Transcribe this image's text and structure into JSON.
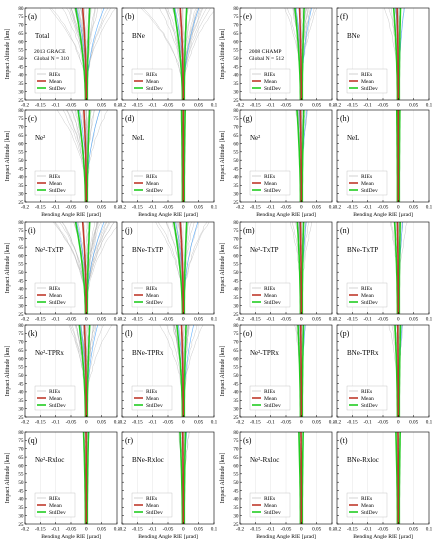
{
  "figure": {
    "axis": {
      "xlim": [
        -0.2,
        0.1
      ],
      "ylim": [
        25,
        80
      ],
      "xticks": [
        -0.2,
        -0.15,
        -0.1,
        -0.05,
        0,
        0.05,
        0.1
      ],
      "yticks": [
        25,
        30,
        35,
        40,
        45,
        50,
        55,
        60,
        65,
        70,
        75,
        80
      ],
      "xlabel": "Bending Angle RIE [µrad]",
      "ylabel": "Impact Altitude [km]"
    },
    "legend": {
      "entries": [
        "RIEs",
        "Mean",
        "StdDev"
      ],
      "placement": "lower-right"
    },
    "colors": {
      "ries": "#b5b5b5",
      "mean": "#c0392b",
      "stddev": "#22cc22",
      "highlight": "#1e90ff"
    }
  },
  "chart_data": [
    {
      "type": "line",
      "label": "(a)",
      "title": "Total",
      "note_lines": [
        "2013 GRACE",
        "Global N = 310"
      ],
      "ries_spread": 0.16,
      "density": 28,
      "mean_offset": -0.012,
      "stddev_offset": 0.02,
      "show_ylabel": true,
      "show_xlabel": false
    },
    {
      "type": "line",
      "label": "(b)",
      "title": "BNe",
      "note_lines": [],
      "ries_spread": 0.14,
      "density": 28,
      "mean_offset": -0.01,
      "stddev_offset": 0.018,
      "show_ylabel": false,
      "show_xlabel": false
    },
    {
      "type": "line",
      "label": "(e)",
      "title": "",
      "note_lines": [
        "2008 CHAMP",
        "Global N = 512"
      ],
      "ries_spread": 0.09,
      "density": 24,
      "mean_offset": -0.006,
      "stddev_offset": 0.012,
      "show_ylabel": true,
      "show_xlabel": false
    },
    {
      "type": "line",
      "label": "(f)",
      "title": "BNe",
      "note_lines": [],
      "ries_spread": 0.05,
      "density": 18,
      "mean_offset": -0.004,
      "stddev_offset": 0.008,
      "show_ylabel": false,
      "show_xlabel": false
    },
    {
      "type": "line",
      "label": "(c)",
      "title": "Ne²",
      "note_lines": [],
      "ries_spread": 0.12,
      "density": 24,
      "mean_offset": -0.008,
      "stddev_offset": 0.016,
      "show_ylabel": true,
      "show_xlabel": true
    },
    {
      "type": "line",
      "label": "(d)",
      "title": "NeL",
      "note_lines": [],
      "ries_spread": 0.01,
      "density": 8,
      "mean_offset": 0.0,
      "stddev_offset": 0.003,
      "show_ylabel": false,
      "show_xlabel": true
    },
    {
      "type": "line",
      "label": "(g)",
      "title": "Ne²",
      "note_lines": [],
      "ries_spread": 0.045,
      "density": 18,
      "mean_offset": -0.003,
      "stddev_offset": 0.008,
      "show_ylabel": true,
      "show_xlabel": true
    },
    {
      "type": "line",
      "label": "(h)",
      "title": "NeL",
      "note_lines": [],
      "ries_spread": 0.008,
      "density": 6,
      "mean_offset": 0.0,
      "stddev_offset": 0.002,
      "show_ylabel": false,
      "show_xlabel": true
    },
    {
      "type": "line",
      "label": "(i)",
      "title": "Ne²-TxTP",
      "note_lines": [],
      "ries_spread": 0.16,
      "density": 28,
      "mean_offset": -0.012,
      "stddev_offset": 0.02,
      "show_ylabel": true,
      "show_xlabel": false
    },
    {
      "type": "line",
      "label": "(j)",
      "title": "BNe-TxTP",
      "note_lines": [],
      "ries_spread": 0.13,
      "density": 26,
      "mean_offset": -0.01,
      "stddev_offset": 0.018,
      "show_ylabel": false,
      "show_xlabel": false
    },
    {
      "type": "line",
      "label": "(m)",
      "title": "Ne²-TxTP",
      "note_lines": [],
      "ries_spread": 0.04,
      "density": 18,
      "mean_offset": -0.003,
      "stddev_offset": 0.007,
      "show_ylabel": true,
      "show_xlabel": false
    },
    {
      "type": "line",
      "label": "(n)",
      "title": "BNe-TxTP",
      "note_lines": [],
      "ries_spread": 0.035,
      "density": 16,
      "mean_offset": -0.003,
      "stddev_offset": 0.006,
      "show_ylabel": false,
      "show_xlabel": false
    },
    {
      "type": "line",
      "label": "(k)",
      "title": "Ne²-TPRx",
      "note_lines": [],
      "ries_spread": 0.1,
      "density": 24,
      "mean_offset": -0.006,
      "stddev_offset": 0.014,
      "show_ylabel": true,
      "show_xlabel": false
    },
    {
      "type": "line",
      "label": "(l)",
      "title": "BNe-TPRx",
      "note_lines": [],
      "ries_spread": 0.09,
      "density": 22,
      "mean_offset": -0.006,
      "stddev_offset": 0.012,
      "show_ylabel": false,
      "show_xlabel": false
    },
    {
      "type": "line",
      "label": "(o)",
      "title": "Ne²-TPRx",
      "note_lines": [],
      "ries_spread": 0.03,
      "density": 16,
      "mean_offset": -0.002,
      "stddev_offset": 0.006,
      "show_ylabel": true,
      "show_xlabel": false
    },
    {
      "type": "line",
      "label": "(p)",
      "title": "BNe-TPRx",
      "note_lines": [],
      "ries_spread": 0.03,
      "density": 16,
      "mean_offset": -0.002,
      "stddev_offset": 0.006,
      "show_ylabel": false,
      "show_xlabel": false
    },
    {
      "type": "line",
      "label": "(q)",
      "title": "Ne²-Rxloc",
      "note_lines": [],
      "ries_spread": 0.02,
      "density": 12,
      "mean_offset": -0.001,
      "stddev_offset": 0.005,
      "show_ylabel": true,
      "show_xlabel": true
    },
    {
      "type": "line",
      "label": "(r)",
      "title": "BNe-Rxloc",
      "note_lines": [],
      "ries_spread": 0.025,
      "density": 14,
      "mean_offset": -0.002,
      "stddev_offset": 0.006,
      "show_ylabel": false,
      "show_xlabel": true
    },
    {
      "type": "line",
      "label": "(s)",
      "title": "Ne²-Rxloc",
      "note_lines": [],
      "ries_spread": 0.012,
      "density": 10,
      "mean_offset": -0.001,
      "stddev_offset": 0.004,
      "show_ylabel": true,
      "show_xlabel": true
    },
    {
      "type": "line",
      "label": "(t)",
      "title": "BNe-Rxloc",
      "note_lines": [],
      "ries_spread": 0.012,
      "density": 10,
      "mean_offset": -0.001,
      "stddev_offset": 0.004,
      "show_ylabel": false,
      "show_xlabel": true
    }
  ]
}
